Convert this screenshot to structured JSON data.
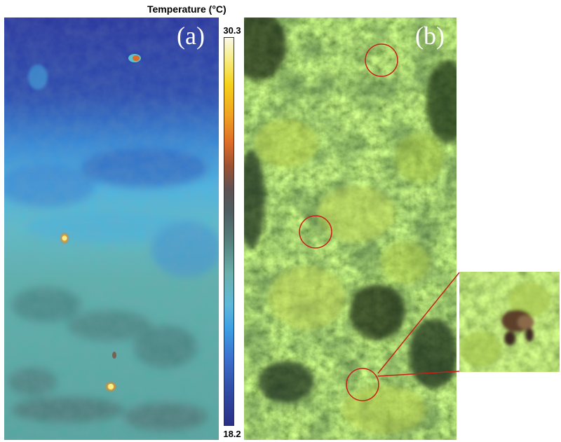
{
  "figure": {
    "panel_a_label": "(a)",
    "panel_b_label": "(b)"
  },
  "colorbar": {
    "title": "Temperature (°C)",
    "max_label": "30.3",
    "min_label": "18.2",
    "max_value": 30.3,
    "min_value": 18.2
  },
  "colors": {
    "highlight_circle": "#c8201a",
    "thermal_cold": "#2a3c9c",
    "thermal_mid": "#6ab0ac",
    "thermal_hot": "#f0a220"
  }
}
